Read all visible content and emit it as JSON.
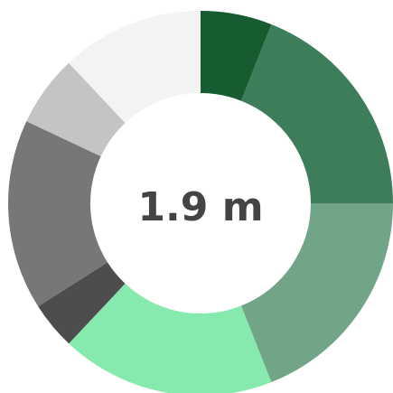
{
  "chart_data": {
    "type": "donut",
    "center_label": "1.9 m",
    "values": [
      6,
      19,
      19,
      18,
      4,
      16,
      6,
      12
    ],
    "colors": [
      "#165c30",
      "#3e7d5a",
      "#72a488",
      "#86e9ae",
      "#4d4d4d",
      "#777777",
      "#c4c4c4",
      "#f3f3f3"
    ]
  }
}
